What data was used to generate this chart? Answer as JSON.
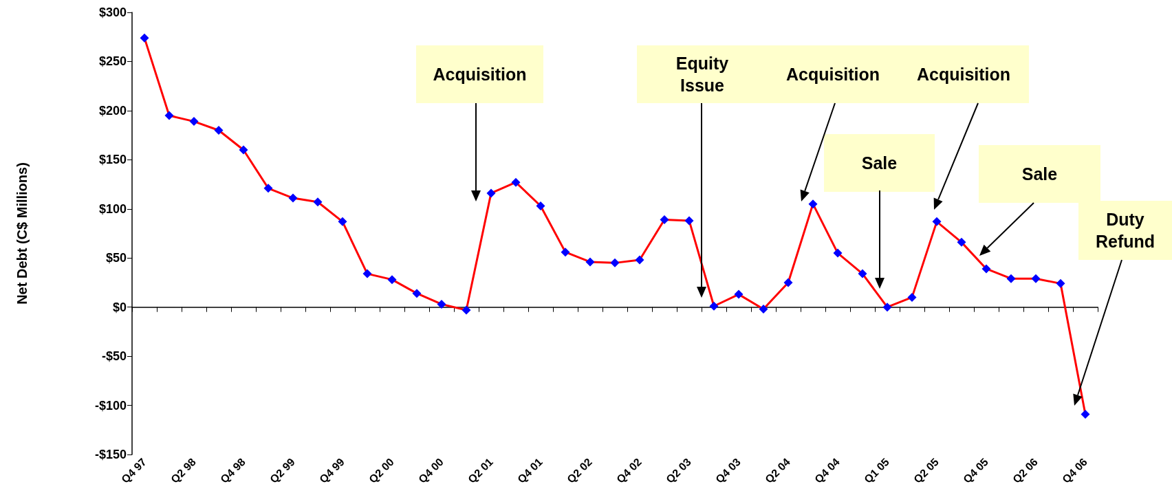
{
  "chart_data": {
    "type": "line",
    "ylabel": "Net Debt (C$ Millions)",
    "categories": [
      "Q4 97",
      null,
      "Q2 98",
      null,
      "Q4 98",
      null,
      "Q2 99",
      null,
      "Q4 99",
      null,
      "Q2 00",
      null,
      "Q4 00",
      null,
      "Q2 01",
      null,
      "Q4 01",
      null,
      "Q2 02",
      null,
      "Q4 02",
      null,
      "Q2 03",
      null,
      "Q4 03",
      null,
      "Q2 04",
      null,
      "Q4 04",
      null,
      "Q1 05",
      null,
      "Q2 05",
      null,
      "Q4 05",
      null,
      "Q2 06",
      null,
      "Q4 06"
    ],
    "series": [
      {
        "color": "#ff0000",
        "values": [
          274,
          195,
          189,
          180,
          160,
          121,
          111,
          107,
          87,
          34,
          28,
          14,
          3,
          -3,
          116,
          127,
          103,
          56,
          46,
          45,
          48,
          89,
          88,
          1,
          13,
          -2,
          25,
          105,
          55,
          34,
          0,
          10,
          87,
          66,
          39,
          29,
          29,
          24,
          -109
        ]
      }
    ],
    "marker": "diamond",
    "line_style": "solid",
    "ylim": [
      -150,
      300
    ],
    "yticks": [
      {
        "value": -150,
        "label": "-$150"
      },
      {
        "value": -100,
        "label": "-$100"
      },
      {
        "value": -50,
        "label": "-$50"
      },
      {
        "value": 0,
        "label": "$0"
      },
      {
        "value": 50,
        "label": "$50"
      },
      {
        "value": 100,
        "label": "$100"
      },
      {
        "value": 150,
        "label": "$150"
      },
      {
        "value": 200,
        "label": "$200"
      },
      {
        "value": 250,
        "label": "$250"
      },
      {
        "value": 300,
        "label": "$300"
      }
    ],
    "annotations": [
      "Acquisition",
      "Equity Issue",
      "Acquisition",
      "Sale",
      "Acquisition",
      "Sale",
      "Duty Refund"
    ]
  }
}
